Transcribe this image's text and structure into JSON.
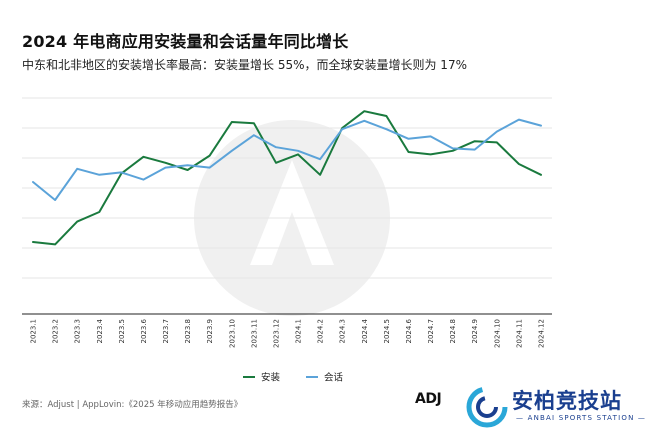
{
  "chart_data": {
    "type": "line",
    "title": "2024 年电商应用安装量和会话量年同比增长",
    "subtitle": "中东和北非地区的安装增长率最高：安装量增长 55%，而全球安装量增长则为 17%",
    "categories": [
      "2023.1",
      "2023.2",
      "2023.3",
      "2023.4",
      "2023.5",
      "2023.6",
      "2023.7",
      "2023.8",
      "2023.9",
      "2023.10",
      "2023.11",
      "2023.12",
      "2024.1",
      "2024.2",
      "2024.3",
      "2024.4",
      "2024.5",
      "2024.6",
      "2024.7",
      "2024.8",
      "2024.9",
      "2024.10",
      "2024.11",
      "2024.12"
    ],
    "series": [
      {
        "name": "安装",
        "color": "#1a7a3e",
        "values": [
          -20,
          -22,
          -3,
          5,
          37,
          51,
          46,
          40,
          52,
          80,
          79,
          46,
          53,
          36,
          75,
          89,
          85,
          55,
          53,
          56,
          64,
          63,
          45,
          36
        ]
      },
      {
        "name": "会话",
        "color": "#5ba3d9",
        "values": [
          30,
          15,
          41,
          36,
          38,
          32,
          42,
          44,
          42,
          56,
          69,
          59,
          56,
          49,
          74,
          81,
          74,
          66,
          68,
          58,
          57,
          72,
          82,
          77
        ]
      }
    ],
    "ylim": [
      -80,
      110
    ],
    "grid_values": [
      100,
      75,
      50,
      25,
      0,
      -25,
      -50
    ],
    "grid": true,
    "legend": "bottom-center"
  },
  "footer": {
    "source": "来源：Adjust | AppLovin:《2025 年移动应用趋势报告》",
    "adj_logo": "ADJ",
    "brand_name": "安柏竞技站",
    "brand_sub": "— ANBAI SPORTS STATION —"
  }
}
